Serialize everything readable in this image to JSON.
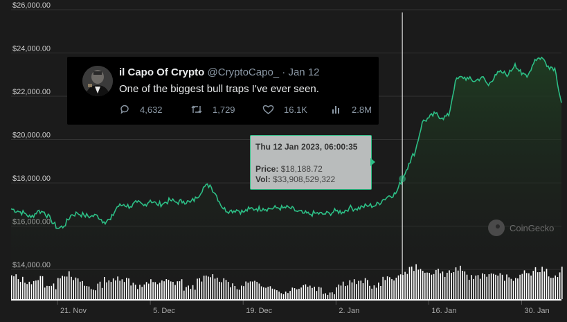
{
  "chart_data": {
    "type": "area",
    "title": "",
    "xlabel": "",
    "ylabel": "",
    "ylim": [
      12500,
      26000
    ],
    "y_ticks": [
      {
        "value": 14000,
        "label": "$14,000.00"
      },
      {
        "value": 16000,
        "label": "$16,000.00"
      },
      {
        "value": 18000,
        "label": "$18,000.00"
      },
      {
        "value": 20000,
        "label": "$20,000.00"
      },
      {
        "value": 22000,
        "label": "$22,000.00"
      },
      {
        "value": 24000,
        "label": "$24,000.00"
      },
      {
        "value": 26000,
        "label": "$26,000.00"
      }
    ],
    "xlim": [
      "2022-11-14",
      "2023-02-05"
    ],
    "x_ticks": [
      {
        "value": "2022-11-21",
        "label": "21. Nov"
      },
      {
        "value": "2022-12-05",
        "label": "5. Dec"
      },
      {
        "value": "2022-12-19",
        "label": "19. Dec"
      },
      {
        "value": "2023-01-02",
        "label": "2. Jan"
      },
      {
        "value": "2023-01-16",
        "label": "16. Jan"
      },
      {
        "value": "2023-01-30",
        "label": "30. Jan"
      }
    ],
    "series": [
      {
        "x": [
          "2022-11-14",
          "2022-11-15",
          "2022-11-16",
          "2022-11-17",
          "2022-11-18",
          "2022-11-19",
          "2022-11-20",
          "2022-11-21",
          "2022-11-22",
          "2022-11-23",
          "2022-11-24",
          "2022-11-25",
          "2022-11-26",
          "2022-11-27",
          "2022-11-28",
          "2022-11-29",
          "2022-11-30",
          "2022-12-01",
          "2022-12-02",
          "2022-12-03",
          "2022-12-04",
          "2022-12-05",
          "2022-12-06",
          "2022-12-07",
          "2022-12-08",
          "2022-12-09",
          "2022-12-10",
          "2022-12-11",
          "2022-12-12",
          "2022-12-13",
          "2022-12-14",
          "2022-12-15",
          "2022-12-16",
          "2022-12-17",
          "2022-12-18",
          "2022-12-19",
          "2022-12-20",
          "2022-12-21",
          "2022-12-22",
          "2022-12-23",
          "2022-12-24",
          "2022-12-25",
          "2022-12-26",
          "2022-12-27",
          "2022-12-28",
          "2022-12-29",
          "2022-12-30",
          "2022-12-31",
          "2023-01-01",
          "2023-01-02",
          "2023-01-03",
          "2023-01-04",
          "2023-01-05",
          "2023-01-06",
          "2023-01-07",
          "2023-01-08",
          "2023-01-09",
          "2023-01-10",
          "2023-01-11",
          "2023-01-12",
          "2023-01-13",
          "2023-01-14",
          "2023-01-15",
          "2023-01-16",
          "2023-01-17",
          "2023-01-18",
          "2023-01-19",
          "2023-01-20",
          "2023-01-21",
          "2023-01-22",
          "2023-01-23",
          "2023-01-24",
          "2023-01-25",
          "2023-01-26",
          "2023-01-27",
          "2023-01-28",
          "2023-01-29",
          "2023-01-30",
          "2023-01-31",
          "2023-02-01",
          "2023-02-02",
          "2023-02-03",
          "2023-02-04",
          "2023-02-05"
        ],
        "y": [
          16800,
          16700,
          16600,
          16400,
          16700,
          16650,
          16300,
          15900,
          16000,
          16500,
          16600,
          16500,
          16450,
          16500,
          16200,
          16300,
          16900,
          17000,
          16900,
          17100,
          16950,
          17200,
          17000,
          17050,
          17200,
          17100,
          17150,
          17100,
          17300,
          17800,
          17900,
          17400,
          16800,
          16700,
          16750,
          16650,
          16800,
          16800,
          16820,
          16810,
          16850,
          16840,
          16850,
          16700,
          16600,
          16550,
          16600,
          16550,
          16600,
          16700,
          16650,
          16850,
          16800,
          16900,
          16950,
          16950,
          17200,
          17400,
          17500,
          18188,
          18900,
          19500,
          20800,
          21000,
          21200,
          21000,
          21100,
          22700,
          22900,
          22800,
          22700,
          22900,
          22500,
          23000,
          23100,
          23000,
          23500,
          23000,
          23000,
          23700,
          23800,
          23400,
          23300,
          21700
        ]
      }
    ],
    "volume_bars": [
      0.62,
      0.55,
      0.5,
      0.45,
      0.6,
      0.4,
      0.35,
      0.65,
      0.7,
      0.55,
      0.5,
      0.35,
      0.3,
      0.4,
      0.55,
      0.5,
      0.6,
      0.55,
      0.45,
      0.35,
      0.4,
      0.5,
      0.45,
      0.5,
      0.45,
      0.5,
      0.3,
      0.35,
      0.5,
      0.6,
      0.65,
      0.55,
      0.55,
      0.35,
      0.3,
      0.45,
      0.45,
      0.4,
      0.4,
      0.35,
      0.2,
      0.2,
      0.3,
      0.35,
      0.4,
      0.35,
      0.3,
      0.2,
      0.2,
      0.4,
      0.45,
      0.5,
      0.45,
      0.5,
      0.35,
      0.4,
      0.55,
      0.6,
      0.6,
      0.75,
      0.85,
      0.9,
      0.7,
      0.75,
      0.8,
      0.7,
      0.75,
      0.85,
      0.7,
      0.6,
      0.65,
      0.7,
      0.65,
      0.7,
      0.6,
      0.55,
      0.6,
      0.75,
      0.7,
      0.8,
      0.85,
      0.65,
      0.7,
      0.85
    ],
    "cursor": {
      "date": "2023-01-12"
    },
    "colors": {
      "line": "#2dbf86",
      "volume": "#ffffff",
      "tooltip_border": "#2dbf86",
      "cursor": "#ffffff"
    }
  },
  "tooltip": {
    "date": "Thu 12 Jan 2023, 06:00:35",
    "price_label": "Price:",
    "price_value": "$18,188.72",
    "vol_label": "Vol:",
    "vol_value": "$33,908,529,322"
  },
  "tweet": {
    "name": "il Capo Of Crypto",
    "handle": "@CryptoCapo_",
    "sep": "·",
    "date": "Jan 12",
    "text": "One of the biggest bull traps I've ever seen.",
    "replies": "4,632",
    "retweets": "1,729",
    "likes": "16.1K",
    "views": "2.8M",
    "avatar_icon": "avatar-photo"
  },
  "watermark": {
    "text": "CoinGecko"
  }
}
